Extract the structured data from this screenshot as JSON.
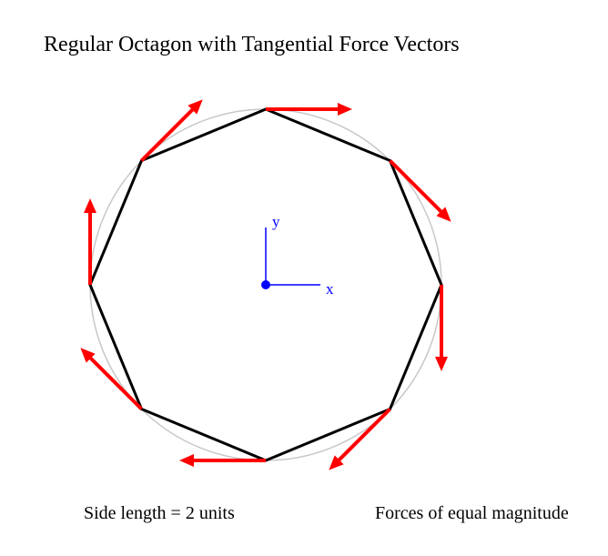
{
  "title": "Regular Octagon with Tangential Force Vectors",
  "captions": {
    "side_length": "Side length = 2 units",
    "forces": "Forces of equal magnitude"
  },
  "axes": {
    "x_label": "x",
    "y_label": "y",
    "color": "#0000ff"
  },
  "octagon": {
    "sides": 8,
    "side_length": 2,
    "stroke_color": "#000000",
    "circumcircle_color": "#c8c8c8"
  },
  "forces": {
    "count": 8,
    "direction": "clockwise tangential",
    "color": "#ff0000"
  }
}
